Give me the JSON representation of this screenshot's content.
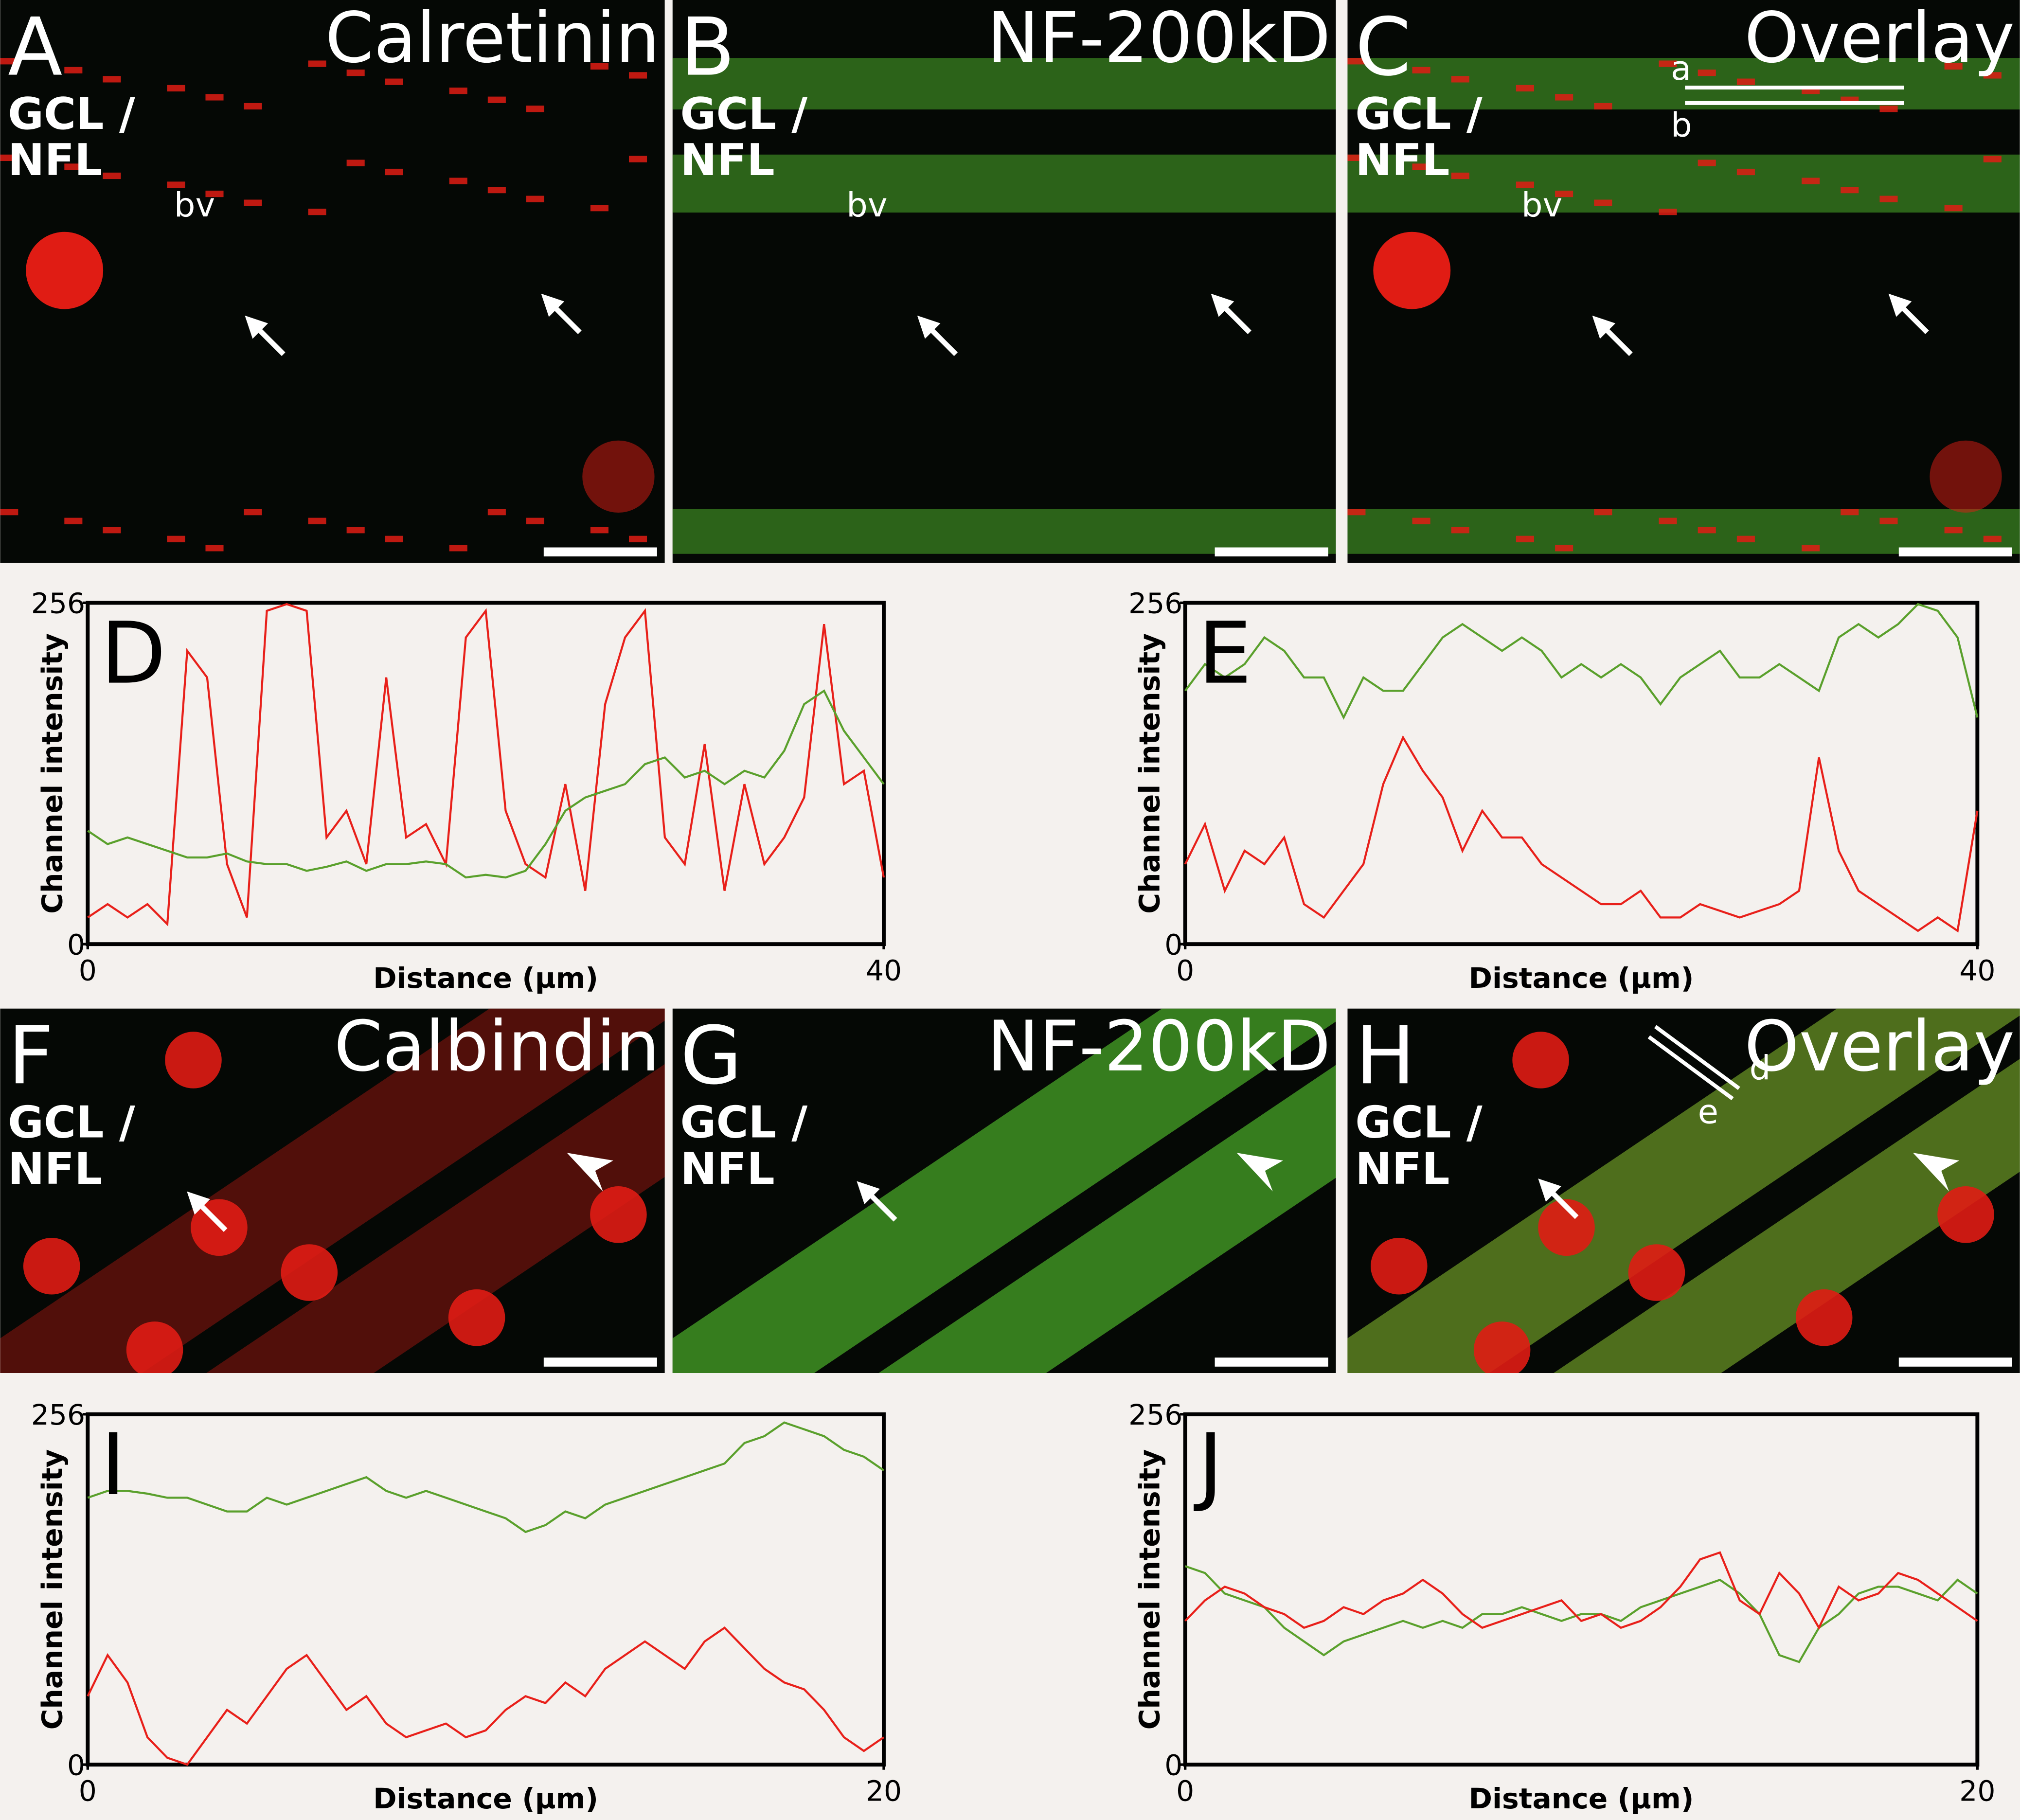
{
  "image_panels": [
    {
      "letter": "A",
      "stain": "Calretinin",
      "layer": [
        "GCL /",
        "NFL"
      ],
      "annotations": [
        "bv"
      ]
    },
    {
      "letter": "B",
      "stain": "NF-200kD",
      "layer": [
        "GCL /",
        "NFL"
      ],
      "annotations": [
        "bv"
      ]
    },
    {
      "letter": "C",
      "stain": "Overlay",
      "layer": [
        "GCL /",
        "NFL"
      ],
      "annotations": [
        "bv",
        "a",
        "b"
      ]
    },
    {
      "letter": "F",
      "stain": "Calbindin",
      "layer": [
        "GCL /",
        "NFL"
      ],
      "annotations": []
    },
    {
      "letter": "G",
      "stain": "NF-200kD",
      "layer": [
        "GCL /",
        "NFL"
      ],
      "annotations": []
    },
    {
      "letter": "H",
      "stain": "Overlay",
      "layer": [
        "GCL /",
        "NFL"
      ],
      "annotations": [
        "d",
        "e"
      ]
    }
  ],
  "chart_data": [
    {
      "type": "line",
      "title": "D",
      "x_label": "Distance (µm)",
      "y_label": "Channel intensity",
      "x": [
        0,
        1,
        2,
        3,
        4,
        5,
        6,
        7,
        8,
        9,
        10,
        11,
        12,
        13,
        14,
        15,
        16,
        17,
        18,
        19,
        20,
        21,
        22,
        23,
        24,
        25,
        26,
        27,
        28,
        29,
        30,
        31,
        32,
        33,
        34,
        35,
        36,
        37,
        38,
        39,
        40
      ],
      "xlim": [
        0,
        40
      ],
      "xticks": [
        0,
        40
      ],
      "ylim": [
        0,
        256
      ],
      "yticks": [
        0,
        256
      ],
      "series": [
        {
          "color": "#e8201a",
          "values": [
            20,
            30,
            20,
            30,
            15,
            220,
            200,
            60,
            20,
            250,
            255,
            250,
            80,
            100,
            60,
            200,
            80,
            90,
            60,
            230,
            250,
            100,
            60,
            50,
            120,
            40,
            180,
            230,
            250,
            80,
            60,
            150,
            40,
            120,
            60,
            80,
            110,
            240,
            120,
            130,
            50
          ]
        },
        {
          "color": "#5aa02c",
          "values": [
            85,
            75,
            80,
            75,
            70,
            65,
            65,
            68,
            62,
            60,
            60,
            55,
            58,
            62,
            55,
            60,
            60,
            62,
            60,
            50,
            52,
            50,
            55,
            75,
            100,
            110,
            115,
            120,
            135,
            140,
            125,
            130,
            120,
            130,
            125,
            145,
            180,
            190,
            160,
            140,
            120
          ]
        }
      ]
    },
    {
      "type": "line",
      "title": "E",
      "x_label": "Distance (µm)",
      "y_label": "Channel intensity",
      "x": [
        0,
        1,
        2,
        3,
        4,
        5,
        6,
        7,
        8,
        9,
        10,
        11,
        12,
        13,
        14,
        15,
        16,
        17,
        18,
        19,
        20,
        21,
        22,
        23,
        24,
        25,
        26,
        27,
        28,
        29,
        30,
        31,
        32,
        33,
        34,
        35,
        36,
        37,
        38,
        39,
        40
      ],
      "xlim": [
        0,
        40
      ],
      "xticks": [
        0,
        40
      ],
      "ylim": [
        0,
        256
      ],
      "yticks": [
        0,
        256
      ],
      "series": [
        {
          "color": "#5aa02c",
          "values": [
            190,
            210,
            200,
            210,
            230,
            220,
            200,
            200,
            170,
            200,
            190,
            190,
            210,
            230,
            240,
            230,
            220,
            230,
            220,
            200,
            210,
            200,
            210,
            200,
            180,
            200,
            210,
            220,
            200,
            200,
            210,
            200,
            190,
            230,
            240,
            230,
            240,
            255,
            250,
            230,
            170
          ]
        },
        {
          "color": "#e8201a",
          "values": [
            60,
            90,
            40,
            70,
            60,
            80,
            30,
            20,
            40,
            60,
            120,
            155,
            130,
            110,
            70,
            100,
            80,
            80,
            60,
            50,
            40,
            30,
            30,
            40,
            20,
            20,
            30,
            25,
            20,
            25,
            30,
            40,
            140,
            70,
            40,
            30,
            20,
            10,
            20,
            10,
            100
          ]
        }
      ]
    },
    {
      "type": "line",
      "title": "I",
      "x_label": "Distance (µm)",
      "y_label": "Channel intensity",
      "x": [
        0,
        0.5,
        1,
        1.5,
        2,
        2.5,
        3,
        3.5,
        4,
        4.5,
        5,
        5.5,
        6,
        6.5,
        7,
        7.5,
        8,
        8.5,
        9,
        9.5,
        10,
        10.5,
        11,
        11.5,
        12,
        12.5,
        13,
        13.5,
        14,
        14.5,
        15,
        15.5,
        16,
        16.5,
        17,
        17.5,
        18,
        18.5,
        19,
        19.5,
        20
      ],
      "xlim": [
        0,
        20
      ],
      "xticks": [
        0,
        20
      ],
      "ylim": [
        0,
        256
      ],
      "yticks": [
        0,
        256
      ],
      "series": [
        {
          "color": "#5aa02c",
          "values": [
            195,
            200,
            200,
            198,
            195,
            195,
            190,
            185,
            185,
            195,
            190,
            195,
            200,
            205,
            210,
            200,
            195,
            200,
            195,
            190,
            185,
            180,
            170,
            175,
            185,
            180,
            190,
            195,
            200,
            205,
            210,
            215,
            220,
            235,
            240,
            250,
            245,
            240,
            230,
            225,
            215
          ]
        },
        {
          "color": "#e8201a",
          "values": [
            50,
            80,
            60,
            20,
            5,
            0,
            20,
            40,
            30,
            50,
            70,
            80,
            60,
            40,
            50,
            30,
            20,
            25,
            30,
            20,
            25,
            40,
            50,
            45,
            60,
            50,
            70,
            80,
            90,
            80,
            70,
            90,
            100,
            85,
            70,
            60,
            55,
            40,
            20,
            10,
            20
          ]
        }
      ]
    },
    {
      "type": "line",
      "title": "J",
      "x_label": "Distance (µm)",
      "y_label": "Channel intensity",
      "x": [
        0,
        0.5,
        1,
        1.5,
        2,
        2.5,
        3,
        3.5,
        4,
        4.5,
        5,
        5.5,
        6,
        6.5,
        7,
        7.5,
        8,
        8.5,
        9,
        9.5,
        10,
        10.5,
        11,
        11.5,
        12,
        12.5,
        13,
        13.5,
        14,
        14.5,
        15,
        15.5,
        16,
        16.5,
        17,
        17.5,
        18,
        18.5,
        19,
        19.5,
        20
      ],
      "xlim": [
        0,
        20
      ],
      "xticks": [
        0,
        20
      ],
      "ylim": [
        0,
        256
      ],
      "yticks": [
        0,
        256
      ],
      "series": [
        {
          "color": "#5aa02c",
          "values": [
            145,
            140,
            125,
            120,
            115,
            100,
            90,
            80,
            90,
            95,
            100,
            105,
            100,
            105,
            100,
            110,
            110,
            115,
            110,
            105,
            110,
            110,
            105,
            115,
            120,
            125,
            130,
            135,
            125,
            110,
            80,
            75,
            100,
            110,
            125,
            130,
            130,
            125,
            120,
            135,
            125
          ]
        },
        {
          "color": "#e8201a",
          "values": [
            105,
            120,
            130,
            125,
            115,
            110,
            100,
            105,
            115,
            110,
            120,
            125,
            135,
            125,
            110,
            100,
            105,
            110,
            115,
            120,
            105,
            110,
            100,
            105,
            115,
            130,
            150,
            155,
            120,
            110,
            140,
            125,
            100,
            130,
            120,
            125,
            140,
            135,
            125,
            115,
            105
          ]
        }
      ]
    }
  ]
}
